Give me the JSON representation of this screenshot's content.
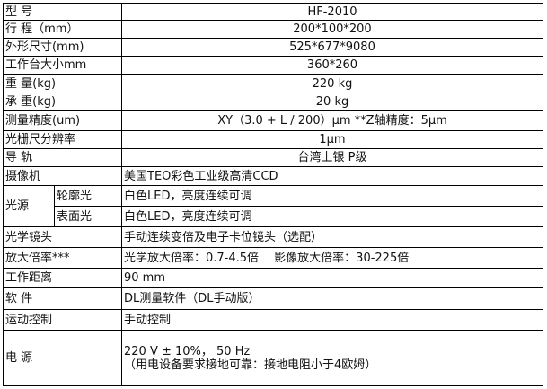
{
  "rows": [
    {
      "label": "型 号",
      "value": "HF-2010"
    },
    {
      "label": "行 程（mm）",
      "value": "200*100*200"
    },
    {
      "label": "外形尺寸(mm)",
      "value": "525*677*9080"
    },
    {
      "label": "工作台大小mm",
      "value": "360*260"
    },
    {
      "label": "重 量(kg)",
      "value": "220 kg"
    },
    {
      "label": "承 重(kg)",
      "value": "20 kg"
    },
    {
      "label": "测量精度(um)",
      "value": "XY（3.0 + L / 200）μm **Z轴精度：5μm"
    },
    {
      "label": "光栅尺分辨率",
      "value": "1μm"
    },
    {
      "label": "导 轨",
      "value": "台湾上银 P级"
    },
    {
      "label": "摄像机",
      "value": "美国TEO彩色工业级高清CCD"
    }
  ],
  "light_source": {
    "label": "光源",
    "items": [
      {
        "label": "轮廓光",
        "value": "白色LED，亮度连续可调"
      },
      {
        "label": "表面光",
        "value": "白色LED，亮度连续可调"
      }
    ]
  },
  "rows2": [
    {
      "label": "光学镜头",
      "value": "手动连续变倍及电子卡位镜头（选配）"
    },
    {
      "label": "放大倍率***",
      "value": "光学放大倍率：0.7-4.5倍　 影像放大倍率：30-225倍"
    },
    {
      "label": "工作距离",
      "value": "90 mm"
    },
    {
      "label": "软 件",
      "value": "DL测量软件（DL手动版）"
    },
    {
      "label": "运动控制",
      "value": "手动控制"
    }
  ],
  "power": {
    "label": "电 源",
    "line1": "220 V ± 10%， 50 Hz",
    "line2": "（用电设备要求接地可靠：接地电阻小于4欧姆）"
  }
}
